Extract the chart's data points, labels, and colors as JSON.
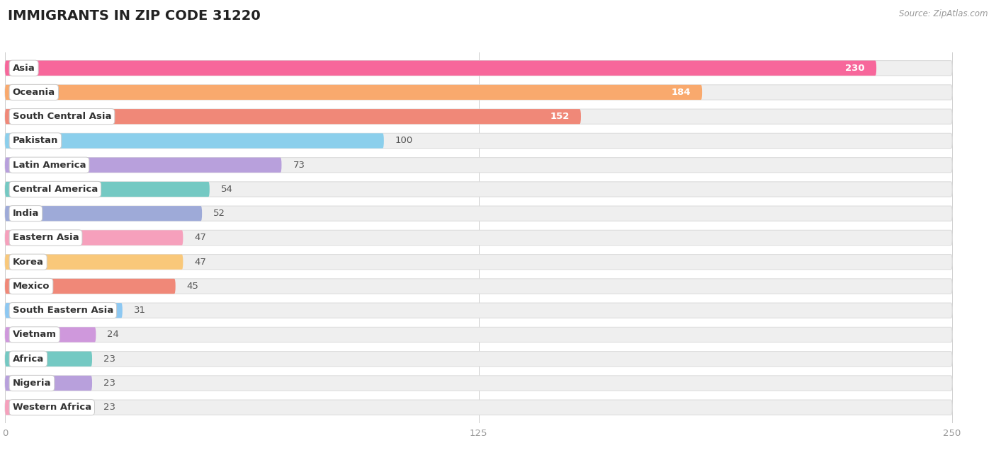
{
  "title": "IMMIGRANTS IN ZIP CODE 31220",
  "source": "Source: ZipAtlas.com",
  "categories": [
    "Asia",
    "Oceania",
    "South Central Asia",
    "Pakistan",
    "Latin America",
    "Central America",
    "India",
    "Eastern Asia",
    "Korea",
    "Mexico",
    "South Eastern Asia",
    "Vietnam",
    "Africa",
    "Nigeria",
    "Western Africa"
  ],
  "values": [
    230,
    184,
    152,
    100,
    73,
    54,
    52,
    47,
    47,
    45,
    31,
    24,
    23,
    23,
    23
  ],
  "colors": [
    "#F7679B",
    "#F9A96D",
    "#F08878",
    "#8BCFEC",
    "#B8A0DC",
    "#74C9C3",
    "#9EAAD8",
    "#F6A0BC",
    "#F9C87A",
    "#F08878",
    "#8DC8F2",
    "#CF98DC",
    "#74C9C3",
    "#B8A0DC",
    "#F6A0BC"
  ],
  "bar_bg_color": "#EFEFEF",
  "background_color": "#FFFFFF",
  "xlim": [
    0,
    250
  ],
  "xticks": [
    0,
    125,
    250
  ],
  "title_fontsize": 14,
  "label_fontsize": 9.5,
  "value_fontsize": 9.5,
  "bar_height": 0.62,
  "bar_spacing": 1.0
}
